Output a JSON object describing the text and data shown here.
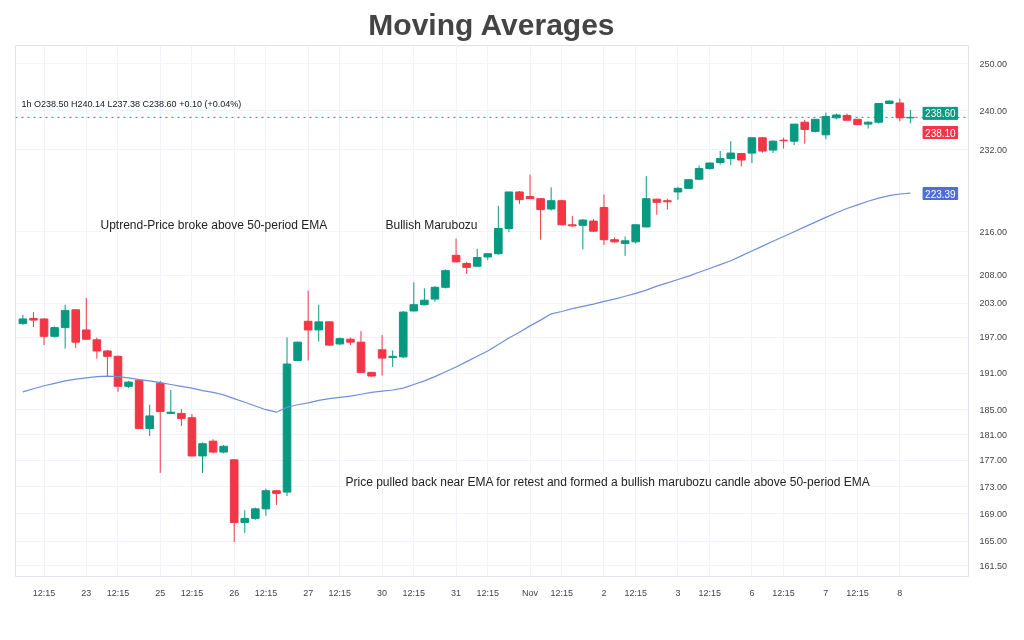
{
  "chart_data": {
    "type": "candlestick",
    "title": "Moving Averages",
    "subtitle": "1h  O238.50 H240.14 L237.38 C238.60 +0.10 (+0.04%)",
    "categories": [
      null,
      null,
      "12:15",
      null,
      null,
      null,
      "23",
      null,
      null,
      "12:15",
      null,
      null,
      null,
      "25",
      null,
      null,
      "12:15",
      null,
      null,
      null,
      "26",
      null,
      null,
      "12:15",
      null,
      null,
      null,
      "27",
      null,
      null,
      "12:15",
      null,
      null,
      null,
      "30",
      null,
      null,
      "12:15",
      null,
      null,
      null,
      "31",
      null,
      null,
      "12:15",
      null,
      null,
      null,
      "Nov",
      null,
      null,
      "12:15",
      null,
      null,
      null,
      "2",
      null,
      null,
      "12:15",
      null,
      null,
      null,
      "3",
      null,
      null,
      "12:15",
      null,
      null,
      null,
      "6",
      null,
      null,
      "12:15",
      null,
      null,
      null,
      "7",
      null,
      null,
      "12:15",
      null,
      null,
      null,
      "8",
      null
    ],
    "ohlc": [
      [
        199.4,
        200.9,
        199.2,
        200.2
      ],
      [
        200.3,
        201.4,
        198.8,
        200.0
      ],
      [
        200.2,
        200.3,
        195.7,
        197.2
      ],
      [
        197.2,
        198.9,
        197.0,
        198.7
      ],
      [
        198.7,
        202.7,
        195.1,
        201.7
      ],
      [
        201.8,
        201.9,
        195.2,
        196.2
      ],
      [
        198.3,
        203.9,
        196.6,
        196.7
      ],
      [
        196.6,
        197.0,
        193.4,
        194.7
      ],
      [
        194.7,
        194.9,
        190.4,
        193.8
      ],
      [
        193.8,
        193.9,
        187.9,
        188.8
      ],
      [
        188.8,
        189.7,
        188.5,
        189.5
      ],
      [
        189.8,
        190.0,
        182.0,
        182.0
      ],
      [
        182.0,
        185.8,
        180.8,
        184.0
      ],
      [
        189.3,
        189.7,
        175.1,
        184.7
      ],
      [
        184.4,
        188.2,
        184.3,
        184.6
      ],
      [
        184.4,
        185.1,
        182.4,
        183.6
      ],
      [
        183.7,
        184.3,
        177.6,
        177.7
      ],
      [
        177.7,
        179.8,
        175.1,
        179.6
      ],
      [
        180.0,
        180.3,
        178.1,
        178.3
      ],
      [
        178.3,
        179.4,
        178.1,
        179.2
      ],
      [
        177.1,
        177.2,
        164.9,
        167.7
      ],
      [
        167.7,
        169.5,
        166.2,
        168.3
      ],
      [
        168.3,
        169.9,
        168.1,
        169.7
      ],
      [
        169.7,
        172.7,
        168.7,
        172.4
      ],
      [
        172.4,
        172.5,
        170.3,
        172.0
      ],
      [
        172.2,
        197.0,
        171.6,
        192.5
      ],
      [
        193.1,
        196.3,
        193.0,
        196.2
      ],
      [
        199.8,
        205.2,
        193.1,
        198.3
      ],
      [
        198.3,
        202.7,
        196.3,
        199.7
      ],
      [
        199.7,
        199.8,
        195.6,
        195.7
      ],
      [
        195.9,
        197.0,
        195.7,
        196.8
      ],
      [
        196.7,
        197.0,
        195.7,
        196.2
      ],
      [
        196.2,
        198.1,
        191.0,
        191.1
      ],
      [
        191.1,
        191.2,
        190.4,
        190.5
      ],
      [
        194.9,
        197.4,
        190.6,
        193.5
      ],
      [
        193.6,
        194.8,
        192.0,
        193.8
      ],
      [
        193.7,
        201.6,
        193.5,
        201.4
      ],
      [
        201.6,
        206.7,
        201.5,
        202.7
      ],
      [
        202.7,
        205.6,
        202.6,
        203.5
      ],
      [
        203.7,
        206.0,
        203.2,
        205.8
      ],
      [
        205.8,
        209.0,
        205.6,
        208.8
      ],
      [
        211.6,
        214.7,
        210.3,
        210.4
      ],
      [
        210.1,
        210.4,
        208.2,
        209.4
      ],
      [
        209.6,
        212.8,
        209.5,
        211.2
      ],
      [
        211.3,
        212.0,
        210.7,
        211.9
      ],
      [
        211.9,
        220.9,
        211.7,
        216.6
      ],
      [
        216.6,
        223.6,
        215.9,
        223.6
      ],
      [
        223.6,
        223.8,
        221.3,
        222.1
      ],
      [
        222.7,
        227.0,
        222.3,
        222.3
      ],
      [
        222.3,
        222.4,
        214.5,
        220.2
      ],
      [
        220.3,
        224.5,
        220.0,
        221.9
      ],
      [
        221.9,
        222.1,
        217.2,
        217.3
      ],
      [
        217.3,
        219.0,
        216.9,
        217.1
      ],
      [
        217.2,
        218.4,
        212.7,
        218.2
      ],
      [
        218.0,
        218.4,
        215.9,
        216.1
      ],
      [
        220.6,
        223.1,
        213.5,
        214.5
      ],
      [
        214.5,
        214.9,
        213.9,
        214.1
      ],
      [
        213.8,
        215.1,
        211.5,
        214.3
      ],
      [
        214.1,
        217.4,
        213.8,
        217.3
      ],
      [
        216.9,
        226.7,
        216.8,
        222.3
      ],
      [
        222.2,
        222.3,
        219.2,
        221.6
      ],
      [
        221.9,
        222.3,
        220.2,
        221.7
      ],
      [
        223.6,
        224.6,
        222.1,
        224.3
      ],
      [
        224.3,
        226.1,
        224.3,
        226.0
      ],
      [
        226.1,
        228.8,
        225.9,
        228.2
      ],
      [
        228.2,
        229.4,
        228.0,
        229.3
      ],
      [
        229.4,
        231.7,
        229.0,
        230.2
      ],
      [
        230.2,
        233.7,
        228.9,
        231.3
      ],
      [
        231.2,
        231.2,
        228.6,
        229.9
      ],
      [
        231.3,
        234.4,
        229.3,
        234.4
      ],
      [
        234.4,
        234.5,
        231.4,
        231.7
      ],
      [
        231.9,
        233.9,
        231.3,
        233.7
      ],
      [
        233.9,
        234.4,
        232.2,
        233.8
      ],
      [
        233.7,
        237.2,
        232.9,
        237.2
      ],
      [
        237.6,
        238.1,
        233.2,
        236.1
      ],
      [
        235.7,
        238.2,
        235.5,
        238.2
      ],
      [
        235.0,
        239.6,
        234.1,
        238.8
      ],
      [
        238.5,
        239.4,
        238.2,
        239.1
      ],
      [
        239.0,
        239.4,
        238.0,
        238.0
      ],
      [
        238.2,
        238.2,
        237.0,
        237.1
      ],
      [
        237.2,
        237.8,
        236.3,
        237.6
      ],
      [
        237.6,
        241.5,
        237.3,
        241.5
      ],
      [
        241.5,
        242.2,
        241.5,
        242.0
      ],
      [
        241.6,
        242.5,
        237.8,
        238.5
      ],
      [
        238.5,
        240.14,
        237.38,
        238.6
      ]
    ],
    "colors": [
      "#089981",
      "#f23645",
      "#f23645",
      "#089981",
      "#089981",
      "#f23645",
      "#f23645",
      "#f23645",
      "#f23645",
      "#f23645",
      "#089981",
      "#f23645",
      "#089981",
      "#f23645",
      "#089981",
      "#f23645",
      "#f23645",
      "#089981",
      "#f23645",
      "#089981",
      "#f23645",
      "#089981",
      "#089981",
      "#089981",
      "#f23645",
      "#089981",
      "#089981",
      "#f23645",
      "#089981",
      "#f23645",
      "#089981",
      "#f23645",
      "#f23645",
      "#f23645",
      "#f23645",
      "#089981",
      "#089981",
      "#089981",
      "#089981",
      "#089981",
      "#089981",
      "#f23645",
      "#f23645",
      "#089981",
      "#089981",
      "#089981",
      "#089981",
      "#f23645",
      "#f23645",
      "#f23645",
      "#089981",
      "#f23645",
      "#f23645",
      "#089981",
      "#f23645",
      "#f23645",
      "#f23645",
      "#089981",
      "#089981",
      "#089981",
      "#f23645",
      "#f23645",
      "#089981",
      "#089981",
      "#089981",
      "#089981",
      "#089981",
      "#089981",
      "#f23645",
      "#089981",
      "#f23645",
      "#089981",
      "#f23645",
      "#089981",
      "#f23645",
      "#089981",
      "#089981",
      "#089981",
      "#f23645",
      "#f23645",
      "#089981",
      "#089981",
      "#089981",
      "#f23645",
      "#089981"
    ],
    "series": [
      {
        "type": "line",
        "color": "#6f8fdc",
        "values": [
          187.9,
          188.4,
          188.9,
          189.3,
          189.7,
          190.0,
          190.2,
          190.4,
          190.5,
          190.4,
          190.2,
          189.9,
          189.7,
          189.4,
          189.1,
          188.8,
          188.5,
          188.1,
          187.8,
          187.4,
          186.8,
          186.2,
          185.6,
          185.0,
          184.6,
          185.4,
          185.8,
          186.1,
          186.5,
          186.8,
          187.0,
          187.2,
          187.5,
          187.8,
          188.0,
          188.2,
          188.5,
          189.1,
          189.7,
          190.4,
          191.2,
          192.0,
          192.9,
          193.8,
          194.7,
          195.8,
          196.9,
          197.9,
          199.0,
          200.0,
          201.1,
          201.5,
          202.0,
          202.4,
          202.8,
          203.3,
          203.7,
          204.2,
          204.7,
          205.3,
          206.0,
          206.6,
          207.2,
          207.8,
          208.5,
          209.2,
          209.9,
          210.6,
          211.5,
          212.4,
          213.3,
          214.2,
          215.1,
          216.0,
          216.9,
          217.8,
          218.7,
          219.6,
          220.4,
          221.1,
          221.8,
          222.4,
          222.9,
          223.2,
          223.39
        ]
      }
    ],
    "ylim": [
      160,
      254
    ],
    "log": "y",
    "yticks": [
      {
        "value": 161.5,
        "label": "161.50"
      },
      {
        "value": 165,
        "label": "165.00"
      },
      {
        "value": 169,
        "label": "169.00"
      },
      {
        "value": 173,
        "label": "173.00"
      },
      {
        "value": 177,
        "label": "177.00"
      },
      {
        "value": 181,
        "label": "181.00"
      },
      {
        "value": 185,
        "label": "185.00"
      },
      {
        "value": 191,
        "label": "191.00"
      },
      {
        "value": 197,
        "label": "197.00"
      },
      {
        "value": 203,
        "label": "203.00"
      },
      {
        "value": 208,
        "label": "208.00"
      },
      {
        "value": 216,
        "label": "216.00"
      },
      {
        "value": 232,
        "label": "232.00"
      },
      {
        "value": 240,
        "label": "240.00"
      },
      {
        "value": 250,
        "label": "250.00"
      }
    ],
    "ref_lines": [
      {
        "axis": "y",
        "value": 238.6,
        "label": "238.60",
        "color": "#089981",
        "line_style": "dotted"
      }
    ],
    "annotations": [
      "Uptrend-Price broke above 50-period EMA",
      "Bullish Marubozu",
      "Price pulled back near EMA for retest and formed a bullish marubozu candle above 50-period EMA",
      "238.10",
      "223.39"
    ],
    "grid": true,
    "marker": "none",
    "line_style": "solid"
  }
}
